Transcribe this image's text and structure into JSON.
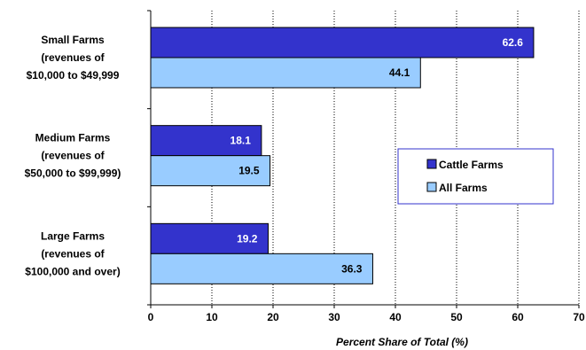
{
  "chart_data": {
    "type": "bar",
    "orientation": "horizontal",
    "categories": [
      [
        "Small Farms",
        "(revenues of",
        "$10,000 to $49,999"
      ],
      [
        "Medium Farms",
        "(revenues of",
        "$50,000 to $99,999)"
      ],
      [
        "Large Farms",
        "(revenues of",
        "$100,000 and over)"
      ]
    ],
    "series": [
      {
        "name": "Cattle Farms",
        "color": "#3333cc",
        "label_color": "#ffffff",
        "values": [
          62.6,
          18.1,
          19.2
        ]
      },
      {
        "name": "All Farms",
        "color": "#99ccff",
        "label_color": "#000000",
        "values": [
          44.1,
          19.5,
          36.3
        ]
      }
    ],
    "value_labels": [
      [
        "62.6",
        "18.1",
        "19.2"
      ],
      [
        "44.1",
        "19.5",
        "36.3"
      ]
    ],
    "xlabel": "Percent Share of Total (%)",
    "xlim": [
      0,
      70
    ],
    "xticks": [
      0,
      10,
      20,
      30,
      40,
      50,
      60,
      70
    ],
    "grid": "vertical dotted",
    "legend": "right"
  }
}
